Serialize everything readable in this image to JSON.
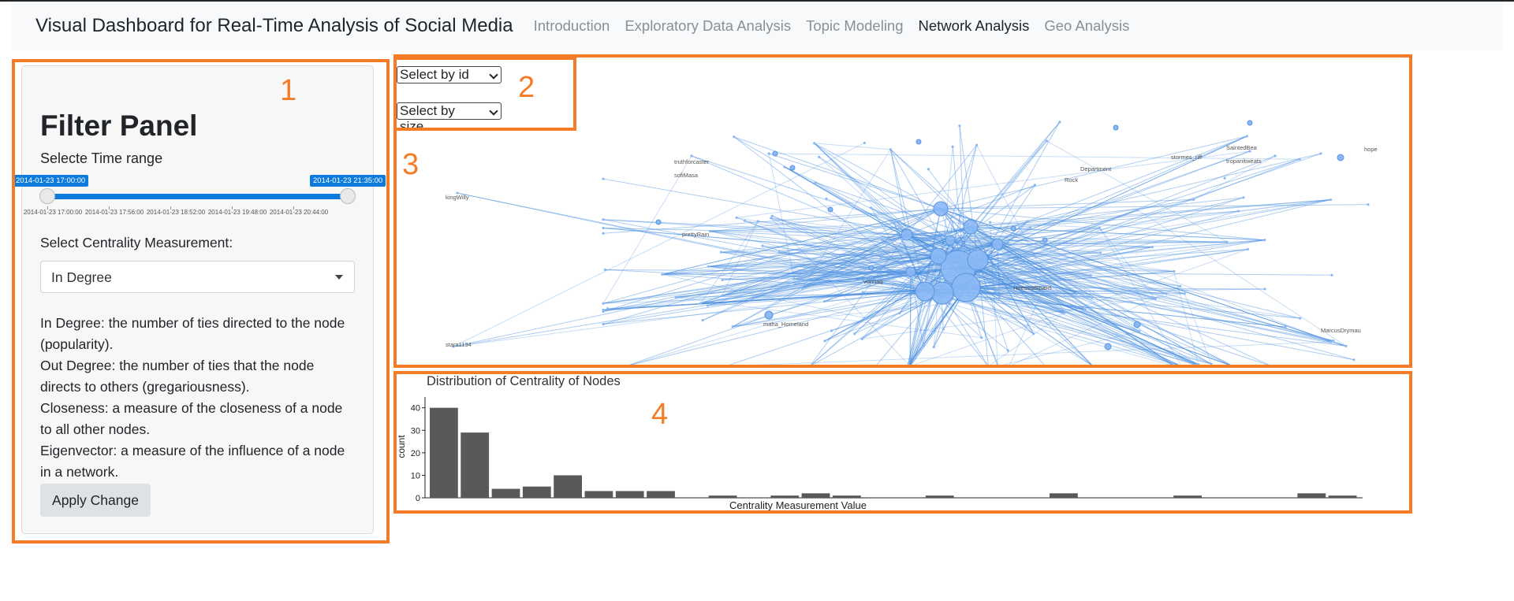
{
  "navbar": {
    "brand": "Visual Dashboard for Real-Time Analysis of Social Media",
    "links": [
      "Introduction",
      "Exploratory Data Analysis",
      "Topic Modeling",
      "Network Analysis",
      "Geo Analysis"
    ],
    "active": "Network Analysis"
  },
  "annotations": [
    "1",
    "2",
    "3",
    "4"
  ],
  "filter_panel": {
    "title": "Filter Panel",
    "time_label": "Selecte Time range",
    "slider": {
      "start_label": "2014-01-23 17:00:00",
      "end_label": "2014-01-23 21:35:00",
      "ticks": [
        "2014-01-23 17:00:00",
        "2014-01-23 17:56:00",
        "2014-01-23 18:52:00",
        "2014-01-23 19:48:00",
        "2014-01-23 20:44:00"
      ],
      "accent": "#0d7bdc"
    },
    "centrality_label": "Select Centrality Measurement:",
    "centrality_value": "In Degree",
    "descriptions": [
      "In Degree: the number of ties directed to the node (popularity).",
      "Out Degree: the number of ties that the node directs to others (gregariousness).",
      "Closeness: a measure of the closeness of a node to all other nodes.",
      "Eigenvector: a measure of the influence of a node in a network."
    ],
    "apply_label": "Apply Change"
  },
  "selectors": {
    "by_id": "Select by id",
    "by_size": "Select by size"
  },
  "network": {
    "node_color": "#8ab8f5",
    "edge_color": "#4a8fe0",
    "labels": [
      "kingWilly",
      "stara1134",
      "truthforcaster",
      "sofiMasa",
      "prettyRain",
      "maha_Homeland",
      "HoesstaBpaRt",
      "SaintedBea",
      "hope",
      "MarcusDrymau",
      "vonnaq",
      "Rock",
      "Department",
      "stormes_riff",
      "tropanitweats"
    ]
  },
  "chart_data": {
    "type": "bar",
    "title": "Distribution of Centrality of Nodes",
    "xlabel": "Centrality Measurement Value",
    "ylabel": "count",
    "ylim": [
      0,
      42
    ],
    "yticks": [
      0,
      10,
      20,
      30,
      40
    ],
    "bin_count": 30,
    "values": [
      40,
      29,
      4,
      5,
      10,
      3,
      3,
      3,
      0,
      1,
      0,
      1,
      2,
      1,
      0,
      0,
      1,
      0,
      0,
      0,
      2,
      0,
      0,
      0,
      1,
      0,
      0,
      0,
      2,
      1
    ],
    "bar_color": "#595959"
  }
}
